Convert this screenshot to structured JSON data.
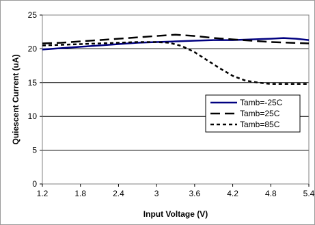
{
  "chart_data": {
    "type": "line",
    "title": "",
    "xlabel": "Input Voltage (V)",
    "ylabel": "Quiescent Current (uA)",
    "xlim": [
      1.2,
      5.4
    ],
    "ylim": [
      0,
      25
    ],
    "xticks": [
      1.2,
      1.8,
      2.4,
      3.0,
      3.6,
      4.2,
      4.8,
      5.4
    ],
    "xtick_labels": [
      "1.2",
      "1.8",
      "2.4",
      "3",
      "3.6",
      "4.2",
      "4.8",
      "5.4"
    ],
    "yticks": [
      0,
      5,
      10,
      15,
      20,
      25
    ],
    "ytick_labels": [
      "0",
      "5",
      "10",
      "15",
      "20",
      "25"
    ],
    "grid": "horizontal",
    "legend_position": "right",
    "series": [
      {
        "name": "Tamb=-25C",
        "color": "#000080",
        "style": "solid",
        "x": [
          1.2,
          1.5,
          1.8,
          2.1,
          2.4,
          2.7,
          3.0,
          3.3,
          3.6,
          3.9,
          4.2,
          4.5,
          4.8,
          5.0,
          5.2,
          5.4
        ],
        "y": [
          19.9,
          20.1,
          20.3,
          20.5,
          20.7,
          20.9,
          21.0,
          21.1,
          21.2,
          21.3,
          21.3,
          21.4,
          21.5,
          21.6,
          21.5,
          21.3
        ]
      },
      {
        "name": "Tamb=25C",
        "color": "#000000",
        "style": "long-dash",
        "x": [
          1.2,
          1.5,
          1.8,
          2.1,
          2.4,
          2.7,
          3.0,
          3.3,
          3.6,
          3.9,
          4.2,
          4.5,
          4.8,
          5.1,
          5.4
        ],
        "y": [
          20.8,
          20.9,
          21.1,
          21.3,
          21.5,
          21.7,
          21.9,
          22.1,
          21.9,
          21.6,
          21.4,
          21.2,
          21.0,
          20.9,
          20.8
        ]
      },
      {
        "name": "Tamb=85C",
        "color": "#000000",
        "style": "short-dash",
        "x": [
          1.2,
          1.5,
          1.8,
          2.1,
          2.4,
          2.7,
          3.0,
          3.2,
          3.4,
          3.6,
          3.8,
          4.0,
          4.2,
          4.4,
          4.6,
          4.8,
          5.0,
          5.2,
          5.4
        ],
        "y": [
          20.5,
          20.6,
          20.7,
          20.8,
          20.9,
          21.0,
          21.0,
          20.9,
          20.4,
          19.5,
          18.3,
          17.1,
          16.0,
          15.3,
          15.0,
          14.8,
          14.8,
          14.8,
          14.8
        ]
      }
    ]
  }
}
